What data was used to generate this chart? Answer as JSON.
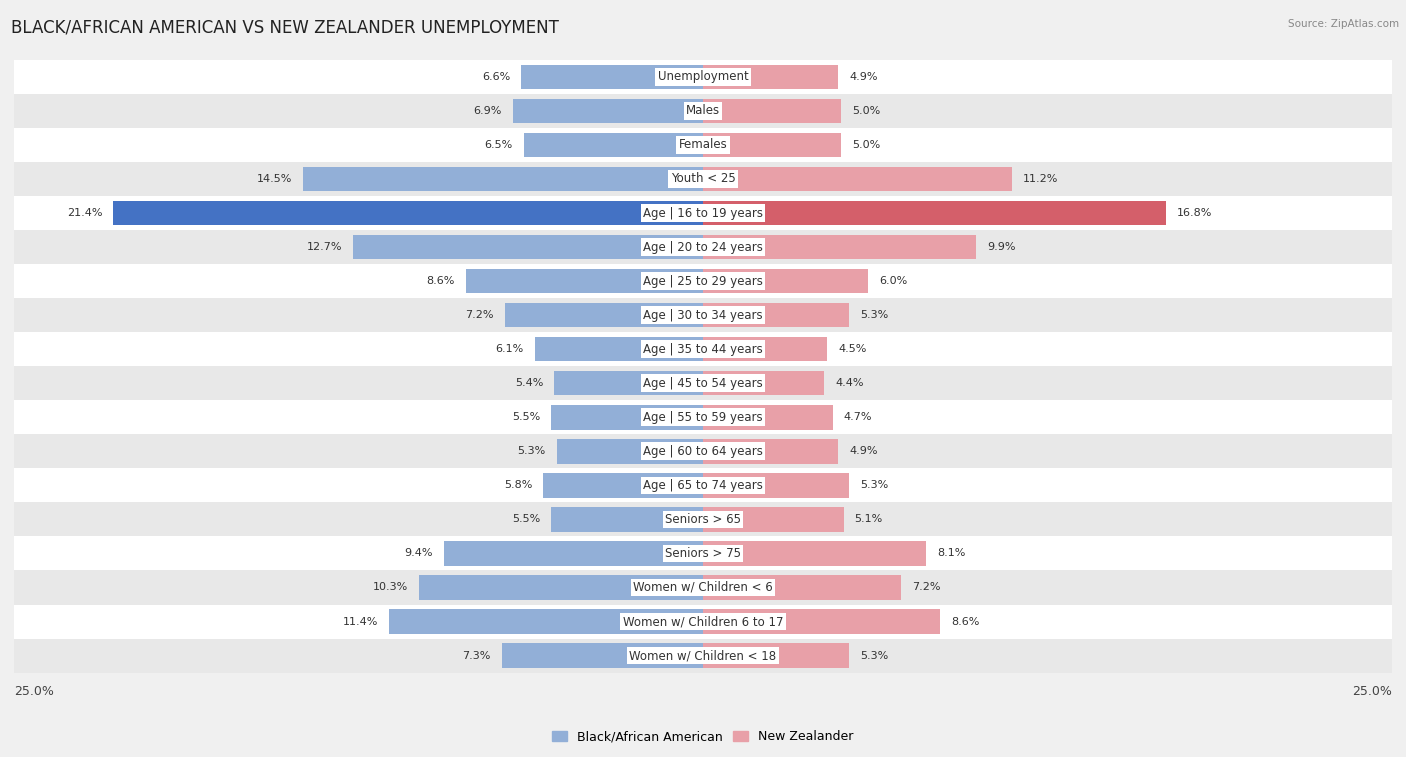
{
  "title": "BLACK/AFRICAN AMERICAN VS NEW ZEALANDER UNEMPLOYMENT",
  "source": "Source: ZipAtlas.com",
  "categories": [
    "Unemployment",
    "Males",
    "Females",
    "Youth < 25",
    "Age | 16 to 19 years",
    "Age | 20 to 24 years",
    "Age | 25 to 29 years",
    "Age | 30 to 34 years",
    "Age | 35 to 44 years",
    "Age | 45 to 54 years",
    "Age | 55 to 59 years",
    "Age | 60 to 64 years",
    "Age | 65 to 74 years",
    "Seniors > 65",
    "Seniors > 75",
    "Women w/ Children < 6",
    "Women w/ Children 6 to 17",
    "Women w/ Children < 18"
  ],
  "left_values": [
    6.6,
    6.9,
    6.5,
    14.5,
    21.4,
    12.7,
    8.6,
    7.2,
    6.1,
    5.4,
    5.5,
    5.3,
    5.8,
    5.5,
    9.4,
    10.3,
    11.4,
    7.3
  ],
  "right_values": [
    4.9,
    5.0,
    5.0,
    11.2,
    16.8,
    9.9,
    6.0,
    5.3,
    4.5,
    4.4,
    4.7,
    4.9,
    5.3,
    5.1,
    8.1,
    7.2,
    8.6,
    5.3
  ],
  "left_color": "#92afd7",
  "right_color": "#e8a0a8",
  "highlight_left_color": "#4472c4",
  "highlight_right_color": "#d45f6a",
  "highlight_index": 4,
  "axis_limit": 25.0,
  "bg_color": "#f0f0f0",
  "bar_bg_color": "#ffffff",
  "row_bg_alt": "#e8e8e8",
  "legend_left": "Black/African American",
  "legend_right": "New Zealander",
  "title_fontsize": 12,
  "label_fontsize": 8.5,
  "value_fontsize": 8
}
